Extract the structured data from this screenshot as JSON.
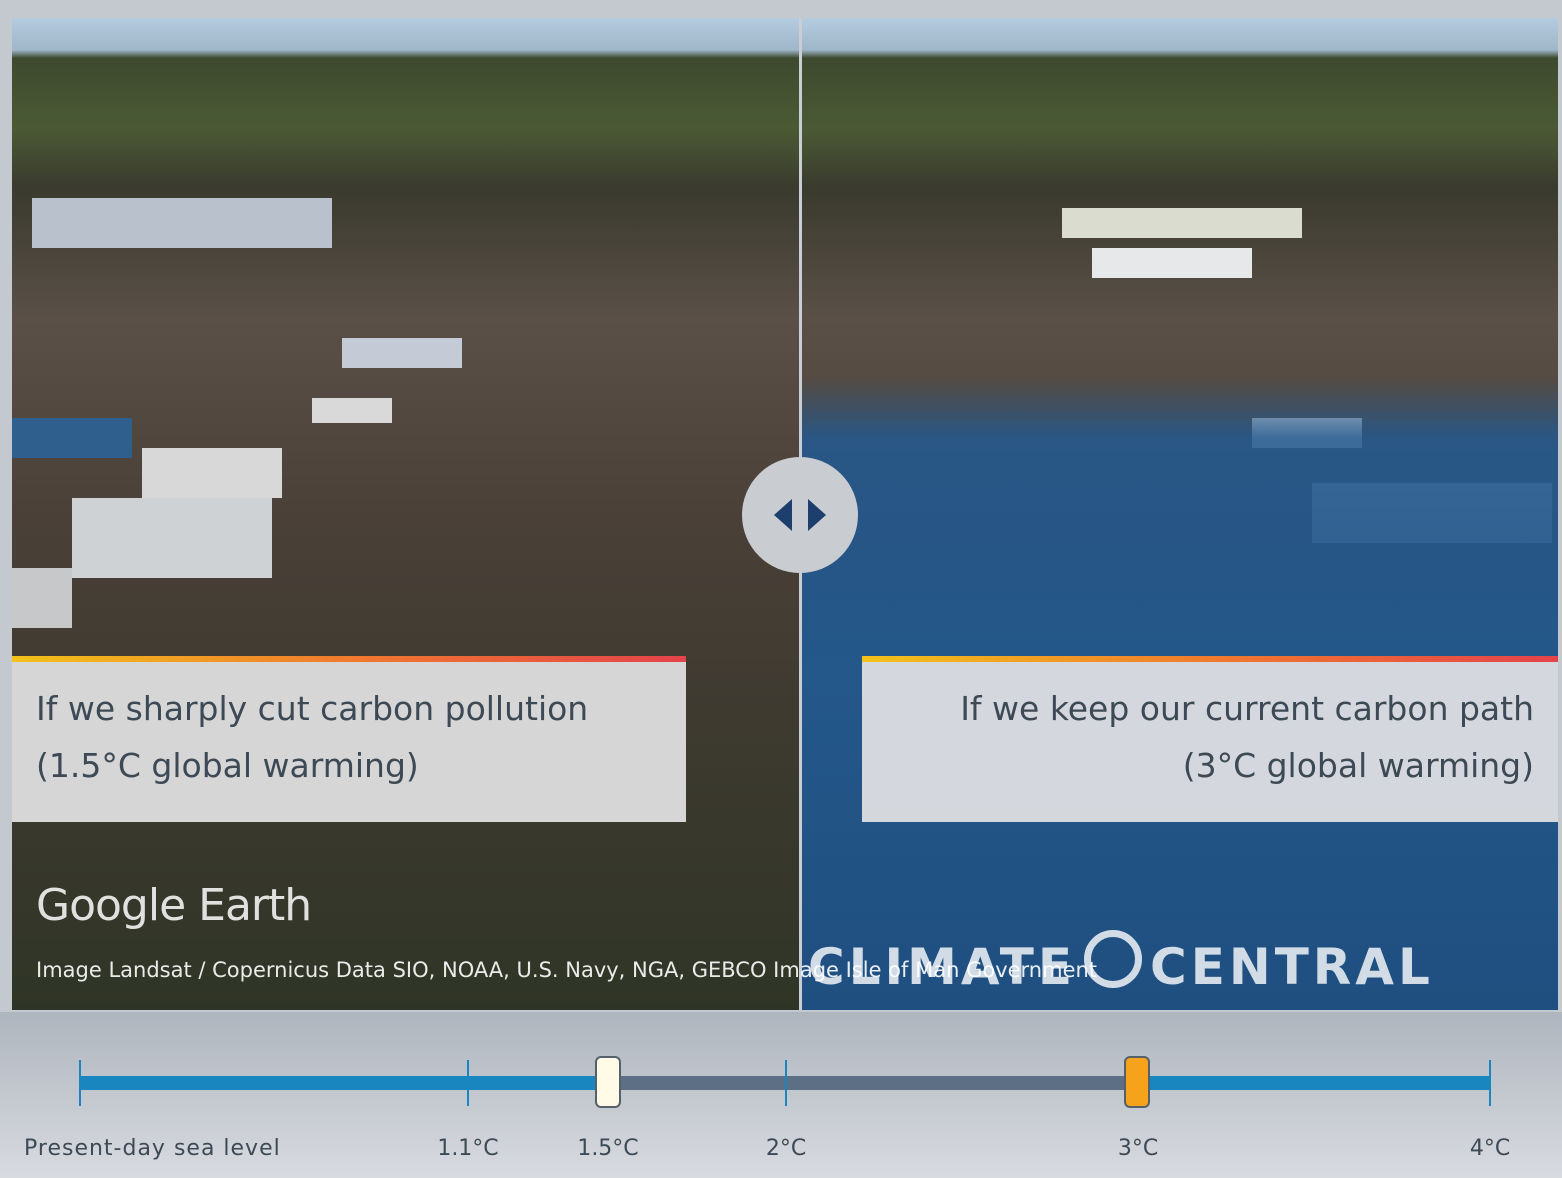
{
  "captions": {
    "left": {
      "line1": "If we sharply cut carbon pollution",
      "line2": "(1.5°C global warming)"
    },
    "right": {
      "line1": "If we keep our current carbon path",
      "line2": "(3°C global warming)"
    }
  },
  "watermark": "Google Earth",
  "credit": "Image Landsat / Copernicus Data SIO, NOAA, U.S. Navy, NGA, GEBCO Image Isle of Man Government",
  "logo": {
    "left": "CLIMATE",
    "right": "CENTRAL"
  },
  "slider": {
    "labels": [
      "Present-day sea level",
      "1.1°C",
      "1.5°C",
      "2°C",
      "3°C",
      "4°C"
    ]
  }
}
